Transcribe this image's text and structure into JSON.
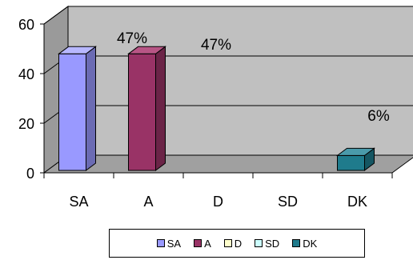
{
  "chart_data": {
    "type": "bar",
    "categories": [
      "SA",
      "A",
      "D",
      "SD",
      "DK"
    ],
    "values": [
      47,
      47,
      0,
      0,
      6
    ],
    "data_labels": [
      "47%",
      "47%",
      "",
      "",
      "6%"
    ],
    "ylim": [
      0,
      60
    ],
    "yticks": [
      0,
      20,
      40,
      60
    ],
    "grid": true,
    "legend_position": "bottom",
    "three_d": true,
    "colors": [
      "#9999ff",
      "#993366",
      "#ffffcc",
      "#ccffff",
      "#1f7b8c"
    ],
    "side_colors": [
      "#6b6bb3",
      "#6b2447",
      "#b3b38f",
      "#8fb3b3",
      "#155662"
    ],
    "top_colors": [
      "#b8b8ff",
      "#b85585",
      "#ffffe0",
      "#e0ffff",
      "#4a9aaa"
    ],
    "wall_color": "#c0c0c0",
    "floor_color": "#a0a0a0"
  }
}
